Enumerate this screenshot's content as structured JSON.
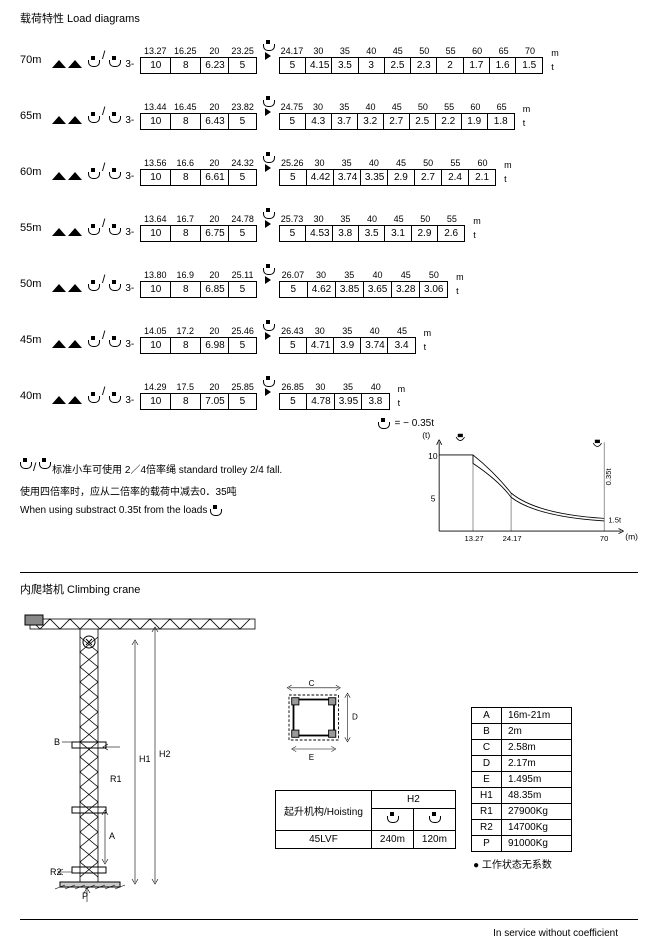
{
  "title": "载荷特性  Load  diagrams",
  "unit_m": "m",
  "unit_t": "t",
  "prefix": "3-",
  "loadRows": [
    {
      "jib": "70m",
      "seg1": {
        "radii": [
          "13.27",
          "16.25",
          "20",
          "23.25"
        ],
        "loads": [
          "10",
          "8",
          "6.23",
          "5"
        ]
      },
      "seg2": {
        "radii": [
          "24.17",
          "30",
          "35",
          "40",
          "45",
          "50",
          "55",
          "60",
          "65",
          "70"
        ],
        "loads": [
          "5",
          "4.15",
          "3.5",
          "3",
          "2.5",
          "2.3",
          "2",
          "1.7",
          "1.6",
          "1.5"
        ]
      }
    },
    {
      "jib": "65m",
      "seg1": {
        "radii": [
          "13.44",
          "16.45",
          "20",
          "23.82"
        ],
        "loads": [
          "10",
          "8",
          "6.43",
          "5"
        ]
      },
      "seg2": {
        "radii": [
          "24.75",
          "30",
          "35",
          "40",
          "45",
          "50",
          "55",
          "60",
          "65"
        ],
        "loads": [
          "5",
          "4.3",
          "3.7",
          "3.2",
          "2.7",
          "2.5",
          "2.2",
          "1.9",
          "1.8"
        ]
      }
    },
    {
      "jib": "60m",
      "seg1": {
        "radii": [
          "13.56",
          "16.6",
          "20",
          "24.32"
        ],
        "loads": [
          "10",
          "8",
          "6.61",
          "5"
        ]
      },
      "seg2": {
        "radii": [
          "25.26",
          "30",
          "35",
          "40",
          "45",
          "50",
          "55",
          "60"
        ],
        "loads": [
          "5",
          "4.42",
          "3.74",
          "3.35",
          "2.9",
          "2.7",
          "2.4",
          "2.1"
        ]
      }
    },
    {
      "jib": "55m",
      "seg1": {
        "radii": [
          "13.64",
          "16.7",
          "20",
          "24.78"
        ],
        "loads": [
          "10",
          "8",
          "6.75",
          "5"
        ]
      },
      "seg2": {
        "radii": [
          "25.73",
          "30",
          "35",
          "40",
          "45",
          "50",
          "55"
        ],
        "loads": [
          "5",
          "4.53",
          "3.8",
          "3.5",
          "3.1",
          "2.9",
          "2.6"
        ]
      }
    },
    {
      "jib": "50m",
      "seg1": {
        "radii": [
          "13.80",
          "16.9",
          "20",
          "25.11"
        ],
        "loads": [
          "10",
          "8",
          "6.85",
          "5"
        ]
      },
      "seg2": {
        "radii": [
          "26.07",
          "30",
          "35",
          "40",
          "45",
          "50"
        ],
        "loads": [
          "5",
          "4.62",
          "3.85",
          "3.65",
          "3.28",
          "3.06"
        ]
      }
    },
    {
      "jib": "45m",
      "seg1": {
        "radii": [
          "14.05",
          "17.2",
          "20",
          "25.46"
        ],
        "loads": [
          "10",
          "8",
          "6.98",
          "5"
        ]
      },
      "seg2": {
        "radii": [
          "26.43",
          "30",
          "35",
          "40",
          "45"
        ],
        "loads": [
          "5",
          "4.71",
          "3.9",
          "3.74",
          "3.4"
        ]
      }
    },
    {
      "jib": "40m",
      "seg1": {
        "radii": [
          "14.29",
          "17.5",
          "20",
          "25.85"
        ],
        "loads": [
          "10",
          "8",
          "7.05",
          "5"
        ]
      },
      "seg2": {
        "radii": [
          "26.85",
          "30",
          "35",
          "40"
        ],
        "loads": [
          "5",
          "4.78",
          "3.95",
          "3.8"
        ]
      }
    }
  ],
  "offsetNote": "=    −  0.35t",
  "notes": {
    "line1": "标准小车可使用 2／4倍率绳   standard trolley 2/4 fall.",
    "line2": "使用四倍率时，应从二倍率的载荷中减去0．35吨",
    "line3": "When using       substract 0.35t from the loads"
  },
  "chart": {
    "yLabel": "(t)",
    "xLabel": "(m)",
    "yMax": "10",
    "yMid": "5",
    "xTicks": [
      "13.27",
      "24.17",
      "70"
    ],
    "rightLabel1": "0.35t",
    "rightLabel2": "1.5t"
  },
  "section2Title": "内爬塔机  Climbing crane",
  "craneDims": [
    "A",
    "B",
    "H1",
    "H2",
    "R1",
    "R2",
    "P"
  ],
  "sectionDims": [
    "C",
    "D",
    "E"
  ],
  "hoistTable": {
    "header": "H2",
    "rowLabel": "起升机构/Hoisting",
    "model": "45LVF",
    "v1": "240m",
    "v2": "120m"
  },
  "dimTable": [
    [
      "A",
      "16m-21m"
    ],
    [
      "B",
      "2m"
    ],
    [
      "C",
      "2.58m"
    ],
    [
      "D",
      "2.17m"
    ],
    [
      "E",
      "1.495m"
    ],
    [
      "H1",
      "48.35m"
    ],
    [
      "R1",
      "27900Kg"
    ],
    [
      "R2",
      "14700Kg"
    ],
    [
      "P",
      "91000Kg"
    ]
  ],
  "footnote1": "● 工作状态无系数",
  "footnote2": "In service without coefficient"
}
